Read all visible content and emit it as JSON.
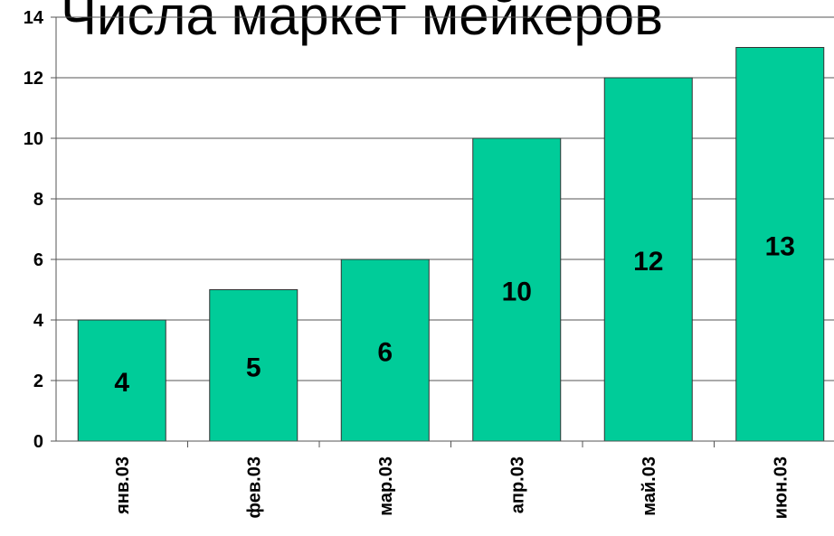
{
  "chart_data": {
    "type": "bar",
    "title": "Числа маркет мейкеров",
    "categories": [
      "янв.03",
      "фев.03",
      "мар.03",
      "апр.03",
      "май.03",
      "июн.03"
    ],
    "values": [
      4,
      5,
      6,
      10,
      12,
      13
    ],
    "color": "#00cc99",
    "ylim": [
      0,
      14
    ],
    "yticks": [
      0,
      2,
      4,
      6,
      8,
      10,
      12,
      14
    ],
    "grid": true
  }
}
